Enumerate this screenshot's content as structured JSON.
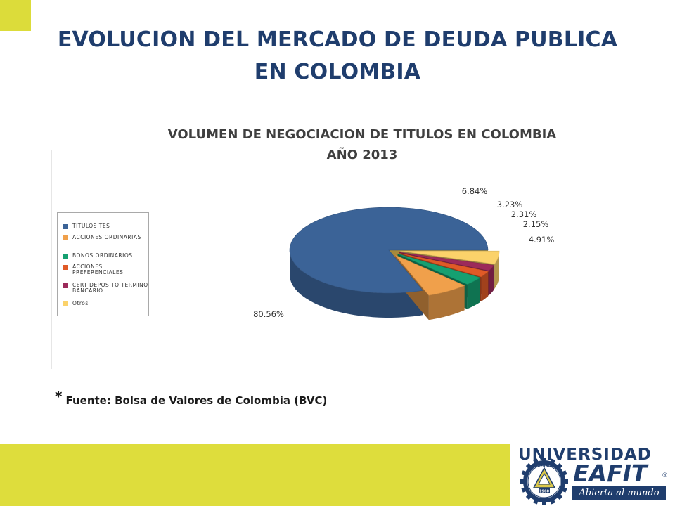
{
  "slide": {
    "title_line1": "EVOLUCION DEL MERCADO DE DEUDA PUBLICA",
    "title_line2": "EN COLOMBIA",
    "source_asterisk": "*",
    "source_text": "Fuente: Bolsa de Valores de Colombia (BVC)"
  },
  "colors": {
    "title": "#1f3d6d",
    "accent_yellow": "#dedd3c"
  },
  "chart_data": {
    "type": "pie",
    "title_line1": "VOLUMEN DE NEGOCIACION DE TITULOS EN COLOMBIA",
    "title_line2": "AÑO 2013",
    "legend_position": "left",
    "three_d": true,
    "slices": [
      {
        "name": "TITULOS TES",
        "value": 80.56,
        "label": "80.56%",
        "color": "#3b6397"
      },
      {
        "name": "ACCIONES ORDINARIAS",
        "value": 6.84,
        "label": "6.84%",
        "color": "#f0a04b"
      },
      {
        "name": "BONOS ORDINARIOS",
        "value": 3.23,
        "label": "3.23%",
        "color": "#15a071"
      },
      {
        "name": "ACCIONES PREFERENCIALES",
        "value": 2.31,
        "label": "2.31%",
        "color": "#e05a27"
      },
      {
        "name": "CERT DEPOSITO TERMINO BANCARIO",
        "value": 2.15,
        "label": "2.15%",
        "color": "#9c2a5a"
      },
      {
        "name": "Otros",
        "value": 4.91,
        "label": "4.91%",
        "color": "#fbd26a"
      }
    ]
  },
  "logo": {
    "universidad": "UNIVERSIDAD",
    "eafit": "EAFIT",
    "tagline": "Abierta al mundo",
    "registered": "®",
    "seal_top": "UNIVERSIDAD",
    "seal_center": "1960",
    "seal_bottom": "EAFIT"
  }
}
